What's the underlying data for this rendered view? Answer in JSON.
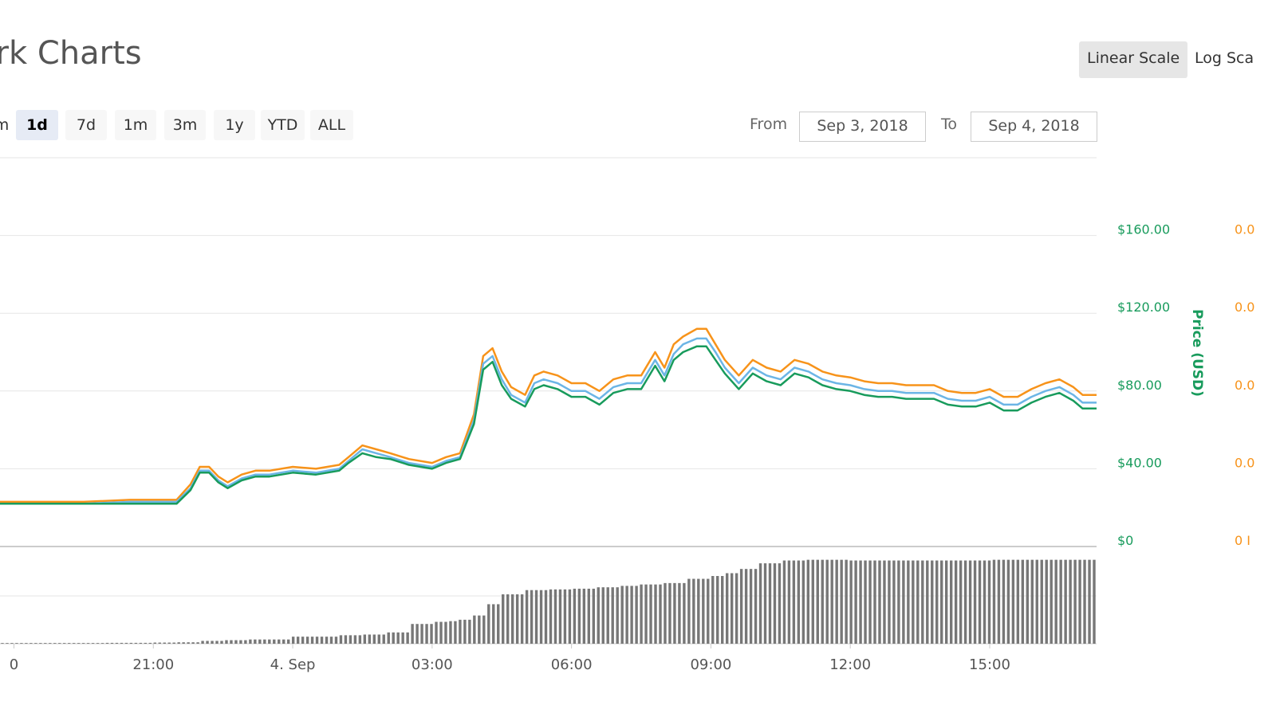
{
  "header": {
    "title": "ark Charts",
    "scale_buttons": [
      {
        "label": "Linear Scale",
        "active": true
      },
      {
        "label": "Log Sca",
        "active": false
      }
    ]
  },
  "range_buttons": [
    {
      "label": "m",
      "active": false
    },
    {
      "label": "1d",
      "active": true
    },
    {
      "label": "7d",
      "active": false
    },
    {
      "label": "1m",
      "active": false
    },
    {
      "label": "3m",
      "active": false
    },
    {
      "label": "1y",
      "active": false
    },
    {
      "label": "YTD",
      "active": false
    },
    {
      "label": "ALL",
      "active": false
    }
  ],
  "date_range": {
    "from_label": "From",
    "from_value": "Sep 3, 2018",
    "to_label": "To",
    "to_value": "Sep 4, 2018"
  },
  "colors": {
    "price_usd": "#189b5c",
    "price_btc": "#f7931a",
    "market_cap": "#6cb5e6",
    "volume": "#777777",
    "grid": "#e6e6e6"
  },
  "chart_data": {
    "type": "line",
    "x_ticks": [
      "0",
      "21:00",
      "4. Sep",
      "03:00",
      "06:00",
      "09:00",
      "12:00",
      "15:00"
    ],
    "x_tick_hours": [
      18,
      21,
      24,
      27,
      30,
      33,
      36,
      39
    ],
    "x_range_hours": [
      17.7,
      41.3
    ],
    "ylabel": "Price (USD)",
    "y_ticks": [
      "$160.00",
      "$120.00",
      "$80.00",
      "$40.00",
      "$0"
    ],
    "y_tick_values": [
      160,
      120,
      80,
      40,
      0
    ],
    "ylim": [
      0,
      200
    ],
    "y2_ticks": [
      "0.0",
      "0.0",
      "0.0",
      "0.0",
      "0 I"
    ],
    "grid": true,
    "series": [
      {
        "name": "",
        "color_key": "price_btc",
        "x": [
          17.7,
          18.5,
          19.5,
          20.5,
          21.5,
          21.8,
          22.0,
          22.2,
          22.4,
          22.6,
          22.9,
          23.2,
          23.5,
          24.0,
          24.5,
          25.0,
          25.2,
          25.5,
          25.8,
          26.1,
          26.5,
          27.0,
          27.3,
          27.6,
          27.9,
          28.1,
          28.3,
          28.5,
          28.7,
          29.0,
          29.2,
          29.4,
          29.7,
          30.0,
          30.3,
          30.6,
          30.9,
          31.2,
          31.5,
          31.8,
          32.0,
          32.2,
          32.4,
          32.7,
          32.9,
          33.1,
          33.3,
          33.6,
          33.9,
          34.2,
          34.5,
          34.8,
          35.1,
          35.4,
          35.7,
          36.0,
          36.3,
          36.6,
          36.9,
          37.2,
          37.5,
          37.8,
          38.1,
          38.4,
          38.7,
          39.0,
          39.3,
          39.6,
          39.9,
          40.2,
          40.5,
          40.8,
          41.0,
          41.3
        ],
        "values": [
          23,
          23,
          23,
          24,
          24,
          32,
          41,
          41,
          36,
          33,
          37,
          39,
          39,
          41,
          40,
          42,
          46,
          52,
          50,
          48,
          45,
          43,
          46,
          48,
          68,
          98,
          102,
          90,
          82,
          78,
          88,
          90,
          88,
          84,
          84,
          80,
          86,
          88,
          88,
          100,
          92,
          104,
          108,
          112,
          112,
          104,
          96,
          88,
          96,
          92,
          90,
          96,
          94,
          90,
          88,
          87,
          85,
          84,
          84,
          83,
          83,
          83,
          80,
          79,
          79,
          81,
          77,
          77,
          81,
          84,
          86,
          82,
          78,
          78
        ]
      },
      {
        "name": "",
        "color_key": "market_cap",
        "x": [
          17.7,
          18.5,
          19.5,
          20.5,
          21.5,
          21.8,
          22.0,
          22.2,
          22.4,
          22.6,
          22.9,
          23.2,
          23.5,
          24.0,
          24.5,
          25.0,
          25.2,
          25.5,
          25.8,
          26.1,
          26.5,
          27.0,
          27.3,
          27.6,
          27.9,
          28.1,
          28.3,
          28.5,
          28.7,
          29.0,
          29.2,
          29.4,
          29.7,
          30.0,
          30.3,
          30.6,
          30.9,
          31.2,
          31.5,
          31.8,
          32.0,
          32.2,
          32.4,
          32.7,
          32.9,
          33.1,
          33.3,
          33.6,
          33.9,
          34.2,
          34.5,
          34.8,
          35.1,
          35.4,
          35.7,
          36.0,
          36.3,
          36.6,
          36.9,
          37.2,
          37.5,
          37.8,
          38.1,
          38.4,
          38.7,
          39.0,
          39.3,
          39.6,
          39.9,
          40.2,
          40.5,
          40.8,
          41.0,
          41.3
        ],
        "values": [
          22,
          22,
          22,
          23,
          23,
          30,
          39,
          39,
          34,
          31,
          35,
          37,
          37,
          39,
          38,
          40,
          44,
          50,
          48,
          46,
          43,
          41,
          44,
          46,
          65,
          94,
          98,
          86,
          78,
          74,
          84,
          86,
          84,
          80,
          80,
          76,
          82,
          84,
          84,
          96,
          88,
          99,
          104,
          107,
          107,
          100,
          92,
          84,
          92,
          88,
          86,
          92,
          90,
          86,
          84,
          83,
          81,
          80,
          80,
          79,
          79,
          79,
          76,
          75,
          75,
          77,
          73,
          73,
          77,
          80,
          82,
          78,
          74,
          74
        ]
      },
      {
        "name": "",
        "color_key": "price_usd",
        "x": [
          17.7,
          18.5,
          19.5,
          20.5,
          21.5,
          21.8,
          22.0,
          22.2,
          22.4,
          22.6,
          22.9,
          23.2,
          23.5,
          24.0,
          24.5,
          25.0,
          25.2,
          25.5,
          25.8,
          26.1,
          26.5,
          27.0,
          27.3,
          27.6,
          27.9,
          28.1,
          28.3,
          28.5,
          28.7,
          29.0,
          29.2,
          29.4,
          29.7,
          30.0,
          30.3,
          30.6,
          30.9,
          31.2,
          31.5,
          31.8,
          32.0,
          32.2,
          32.4,
          32.7,
          32.9,
          33.1,
          33.3,
          33.6,
          33.9,
          34.2,
          34.5,
          34.8,
          35.1,
          35.4,
          35.7,
          36.0,
          36.3,
          36.6,
          36.9,
          37.2,
          37.5,
          37.8,
          38.1,
          38.4,
          38.7,
          39.0,
          39.3,
          39.6,
          39.9,
          40.2,
          40.5,
          40.8,
          41.0,
          41.3
        ],
        "values": [
          22,
          22,
          22,
          22,
          22,
          29,
          38,
          38,
          33,
          30,
          34,
          36,
          36,
          38,
          37,
          39,
          43,
          48,
          46,
          45,
          42,
          40,
          43,
          45,
          63,
          91,
          95,
          83,
          76,
          72,
          81,
          83,
          81,
          77,
          77,
          73,
          79,
          81,
          81,
          93,
          85,
          96,
          100,
          103,
          103,
          96,
          89,
          81,
          89,
          85,
          83,
          89,
          87,
          83,
          81,
          80,
          78,
          77,
          77,
          76,
          76,
          76,
          73,
          72,
          72,
          74,
          70,
          70,
          74,
          77,
          79,
          75,
          71,
          71
        ]
      },
      {
        "name": "",
        "color_key": "volume",
        "type": "bar",
        "x": [
          17.7,
          19.0,
          20.0,
          21.0,
          21.5,
          22.0,
          22.5,
          23.0,
          24.0,
          25.0,
          25.5,
          26.0,
          26.5,
          27.0,
          27.3,
          27.6,
          27.9,
          28.2,
          28.5,
          29.0,
          29.5,
          30.0,
          30.5,
          31.0,
          31.5,
          32.0,
          32.5,
          33.0,
          33.3,
          33.6,
          34.0,
          34.5,
          35.0,
          36.0,
          37.0,
          38.0,
          39.0,
          40.0,
          41.3
        ],
        "values": [
          0.5,
          0.5,
          0.6,
          0.8,
          1,
          2,
          2.5,
          3,
          5,
          6,
          6.5,
          8,
          14,
          15.5,
          16,
          17,
          20,
          28,
          35,
          38,
          38.5,
          39,
          40,
          41,
          42,
          43,
          46,
          48,
          50,
          53,
          57,
          59,
          59.5,
          59,
          59,
          59,
          59.5,
          59.5,
          61
        ]
      }
    ]
  }
}
